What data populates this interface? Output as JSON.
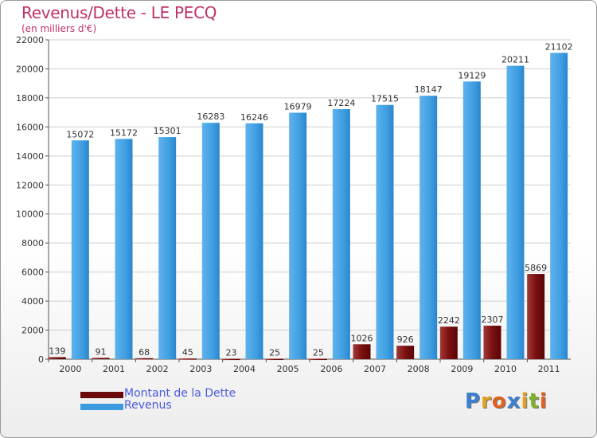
{
  "chart_data": {
    "type": "bar",
    "title": "Revenus/Dette - LE PECQ",
    "subtitle": "(en milliers d'€)",
    "categories": [
      "2000",
      "2001",
      "2002",
      "2003",
      "2004",
      "2005",
      "2006",
      "2007",
      "2008",
      "2009",
      "2010",
      "2011"
    ],
    "series": [
      {
        "name": "Montant de la Dette",
        "color": "#6b0a0a",
        "values": [
          139,
          91,
          68,
          45,
          23,
          25,
          25,
          1026,
          926,
          2242,
          2307,
          5869
        ]
      },
      {
        "name": "Revenus",
        "color": "#3b9be0",
        "values": [
          15072,
          15172,
          15301,
          16283,
          16246,
          16979,
          17224,
          17515,
          18147,
          19129,
          20211,
          21102
        ]
      }
    ],
    "ylim": [
      0,
      22000
    ],
    "yticks": [
      0,
      2000,
      4000,
      6000,
      8000,
      10000,
      12000,
      14000,
      16000,
      18000,
      20000,
      22000
    ],
    "grid": true,
    "legend": "bottom-left"
  },
  "logo": {
    "text": "Proxiti",
    "letters": [
      "P",
      "r",
      "o",
      "x",
      "i",
      "t",
      "i"
    ],
    "colors": [
      "#3a7fd0",
      "#e0a020",
      "#e06020",
      "#3a7fd0",
      "#e0a020",
      "#80b030",
      "#e06020"
    ]
  }
}
